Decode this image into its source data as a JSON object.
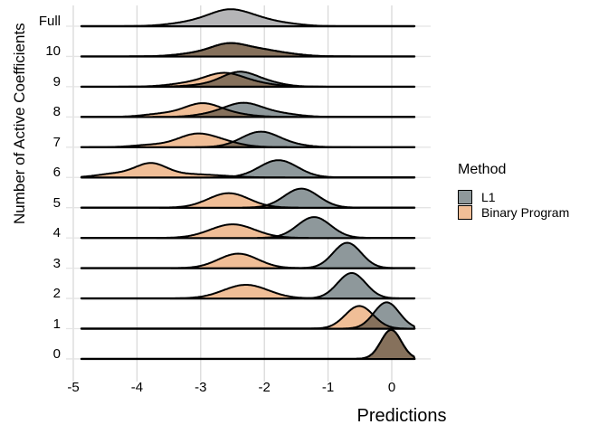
{
  "chart_data": {
    "type": "ridgeline",
    "xlabel": "Predictions",
    "ylabel": "Number of Active Coefficients",
    "x_ticks": [
      -5,
      -4,
      -3,
      -2,
      -1,
      0
    ],
    "xlim": [
      -4.87,
      0.36
    ],
    "grid": "on",
    "legend": {
      "title": "Method",
      "position": "right",
      "items": [
        {
          "label": "L1",
          "method": "L1"
        },
        {
          "label": "Binary Program",
          "method": "Binary Program"
        }
      ]
    },
    "colors": {
      "L1": "#8E989B",
      "Binary Program": "#F0BE97",
      "Full": "#B5B5B7",
      "outline": "#000000"
    },
    "rows": [
      {
        "label": "Full",
        "series": [
          {
            "method": "Full",
            "components": [
              {
                "mu": -2.56,
                "sigma": 0.3,
                "h": 0.42
              },
              {
                "mu": -2.1,
                "sigma": 0.32,
                "h": 0.21
              },
              {
                "mu": -3.05,
                "sigma": 0.38,
                "h": 0.15
              },
              {
                "mu": -1.55,
                "sigma": 0.25,
                "h": 0.045
              }
            ]
          }
        ]
      },
      {
        "label": "10",
        "series": [
          {
            "method": "Binary Program",
            "components": [
              {
                "mu": -2.56,
                "sigma": 0.28,
                "h": 0.39
              },
              {
                "mu": -2.05,
                "sigma": 0.28,
                "h": 0.18
              },
              {
                "mu": -3.1,
                "sigma": 0.3,
                "h": 0.09
              },
              {
                "mu": -1.6,
                "sigma": 0.28,
                "h": 0.06
              }
            ]
          },
          {
            "method": "L1",
            "components": [
              {
                "mu": -2.56,
                "sigma": 0.28,
                "h": 0.39
              },
              {
                "mu": -2.05,
                "sigma": 0.28,
                "h": 0.18
              },
              {
                "mu": -3.1,
                "sigma": 0.3,
                "h": 0.09
              },
              {
                "mu": -1.6,
                "sigma": 0.28,
                "h": 0.06
              }
            ]
          }
        ]
      },
      {
        "label": "9",
        "series": [
          {
            "method": "Binary Program",
            "components": [
              {
                "mu": -2.63,
                "sigma": 0.3,
                "h": 0.42
              },
              {
                "mu": -3.2,
                "sigma": 0.32,
                "h": 0.1
              },
              {
                "mu": -2.1,
                "sigma": 0.3,
                "h": 0.09
              }
            ]
          },
          {
            "method": "L1",
            "components": [
              {
                "mu": -2.4,
                "sigma": 0.27,
                "h": 0.45
              },
              {
                "mu": -1.95,
                "sigma": 0.27,
                "h": 0.12
              },
              {
                "mu": -2.9,
                "sigma": 0.3,
                "h": 0.06
              }
            ]
          }
        ]
      },
      {
        "label": "8",
        "series": [
          {
            "method": "Binary Program",
            "components": [
              {
                "mu": -2.98,
                "sigma": 0.28,
                "h": 0.42
              },
              {
                "mu": -3.6,
                "sigma": 0.3,
                "h": 0.1
              },
              {
                "mu": -2.5,
                "sigma": 0.3,
                "h": 0.09
              }
            ]
          },
          {
            "method": "L1",
            "components": [
              {
                "mu": -2.34,
                "sigma": 0.3,
                "h": 0.45
              },
              {
                "mu": -1.75,
                "sigma": 0.3,
                "h": 0.1
              },
              {
                "mu": -2.9,
                "sigma": 0.25,
                "h": 0.06
              }
            ]
          }
        ]
      },
      {
        "label": "7",
        "series": [
          {
            "method": "Binary Program",
            "components": [
              {
                "mu": -3.07,
                "sigma": 0.3,
                "h": 0.42
              },
              {
                "mu": -3.8,
                "sigma": 0.28,
                "h": 0.07
              },
              {
                "mu": -2.6,
                "sigma": 0.28,
                "h": 0.12
              }
            ]
          },
          {
            "method": "L1",
            "components": [
              {
                "mu": -2.06,
                "sigma": 0.3,
                "h": 0.51
              },
              {
                "mu": -1.5,
                "sigma": 0.25,
                "h": 0.045
              }
            ]
          }
        ]
      },
      {
        "label": "6",
        "series": [
          {
            "method": "Binary Program",
            "components": [
              {
                "mu": -3.78,
                "sigma": 0.25,
                "h": 0.45
              },
              {
                "mu": -4.35,
                "sigma": 0.28,
                "h": 0.12
              },
              {
                "mu": -3.2,
                "sigma": 0.3,
                "h": 0.09
              },
              {
                "mu": -2.7,
                "sigma": 0.3,
                "h": 0.045
              }
            ]
          },
          {
            "method": "L1",
            "components": [
              {
                "mu": -1.78,
                "sigma": 0.3,
                "h": 0.57
              }
            ]
          }
        ]
      },
      {
        "label": "5",
        "series": [
          {
            "method": "Binary Program",
            "components": [
              {
                "mu": -2.56,
                "sigma": 0.32,
                "h": 0.48
              }
            ]
          },
          {
            "method": "L1",
            "components": [
              {
                "mu": -1.42,
                "sigma": 0.27,
                "h": 0.63
              }
            ]
          }
        ]
      },
      {
        "label": "4",
        "series": [
          {
            "method": "Binary Program",
            "components": [
              {
                "mu": -2.5,
                "sigma": 0.35,
                "h": 0.45
              }
            ]
          },
          {
            "method": "L1",
            "components": [
              {
                "mu": -1.22,
                "sigma": 0.26,
                "h": 0.69
              }
            ]
          }
        ]
      },
      {
        "label": "3",
        "series": [
          {
            "method": "Binary Program",
            "components": [
              {
                "mu": -2.41,
                "sigma": 0.31,
                "h": 0.48
              }
            ]
          },
          {
            "method": "L1",
            "components": [
              {
                "mu": -0.7,
                "sigma": 0.22,
                "h": 0.84
              }
            ]
          }
        ]
      },
      {
        "label": "2",
        "series": [
          {
            "method": "Binary Program",
            "components": [
              {
                "mu": -2.29,
                "sigma": 0.35,
                "h": 0.45
              }
            ]
          },
          {
            "method": "L1",
            "components": [
              {
                "mu": -0.63,
                "sigma": 0.22,
                "h": 0.84
              }
            ]
          }
        ]
      },
      {
        "label": "1",
        "series": [
          {
            "method": "Binary Program",
            "components": [
              {
                "mu": -0.51,
                "sigma": 0.22,
                "h": 0.75
              }
            ]
          },
          {
            "method": "L1",
            "components": [
              {
                "mu": -0.08,
                "sigma": 0.2,
                "h": 0.87
              }
            ]
          }
        ]
      },
      {
        "label": "0",
        "series": [
          {
            "method": "Binary Program",
            "components": [
              {
                "mu": -0.01,
                "sigma": 0.16,
                "h": 0.96
              }
            ]
          },
          {
            "method": "L1",
            "components": [
              {
                "mu": -0.01,
                "sigma": 0.16,
                "h": 0.96
              }
            ]
          }
        ]
      }
    ]
  }
}
